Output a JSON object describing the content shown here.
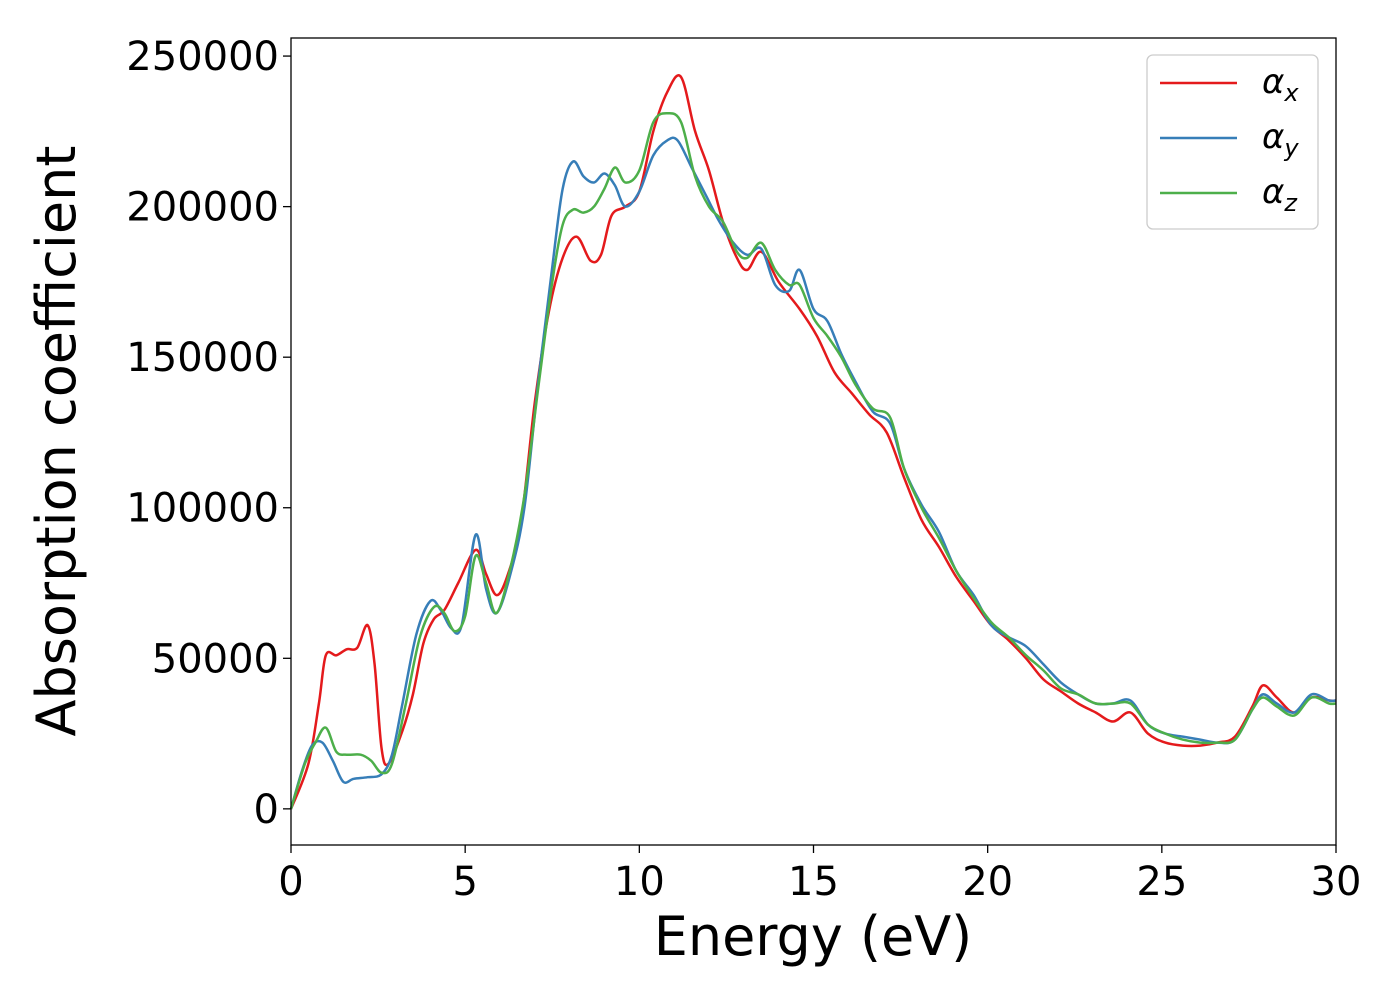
{
  "chart_data": {
    "type": "line",
    "xlabel": "Energy (eV)",
    "ylabel": "Absorption coefficient",
    "xlim": [
      0,
      30
    ],
    "ylim": [
      -12000,
      256000
    ],
    "xticks": [
      0,
      5,
      10,
      15,
      20,
      25,
      30
    ],
    "yticks": [
      0,
      50000,
      100000,
      150000,
      200000,
      250000
    ],
    "grid": false,
    "legend_position": "top-right",
    "series": [
      {
        "name": "α",
        "subscript": "x",
        "color": "#e41a1c",
        "points": [
          [
            0,
            0
          ],
          [
            0.5,
            15000
          ],
          [
            0.8,
            35000
          ],
          [
            1.0,
            51000
          ],
          [
            1.3,
            51000
          ],
          [
            1.6,
            53000
          ],
          [
            1.9,
            53500
          ],
          [
            2.2,
            61000
          ],
          [
            2.4,
            48000
          ],
          [
            2.6,
            20000
          ],
          [
            2.8,
            15000
          ],
          [
            3.2,
            26000
          ],
          [
            3.5,
            38000
          ],
          [
            3.8,
            55000
          ],
          [
            4.1,
            63000
          ],
          [
            4.4,
            66000
          ],
          [
            4.8,
            75000
          ],
          [
            5.3,
            86000
          ],
          [
            5.6,
            78000
          ],
          [
            5.9,
            71000
          ],
          [
            6.2,
            77000
          ],
          [
            6.6,
            95000
          ],
          [
            7.0,
            135000
          ],
          [
            7.4,
            165000
          ],
          [
            7.8,
            183000
          ],
          [
            8.2,
            190000
          ],
          [
            8.6,
            182000
          ],
          [
            8.9,
            184000
          ],
          [
            9.2,
            197000
          ],
          [
            9.6,
            200000
          ],
          [
            10.0,
            205000
          ],
          [
            10.4,
            225000
          ],
          [
            10.8,
            238000
          ],
          [
            11.2,
            243000
          ],
          [
            11.6,
            225000
          ],
          [
            12.0,
            212000
          ],
          [
            12.4,
            195000
          ],
          [
            12.8,
            183000
          ],
          [
            13.1,
            179000
          ],
          [
            13.5,
            185000
          ],
          [
            14.0,
            175000
          ],
          [
            14.6,
            166000
          ],
          [
            15.1,
            157000
          ],
          [
            15.6,
            145000
          ],
          [
            16.1,
            138000
          ],
          [
            16.6,
            131000
          ],
          [
            17.1,
            125000
          ],
          [
            17.6,
            110000
          ],
          [
            18.1,
            96000
          ],
          [
            18.6,
            87000
          ],
          [
            19.1,
            77000
          ],
          [
            19.6,
            69000
          ],
          [
            20.1,
            61000
          ],
          [
            20.6,
            56000
          ],
          [
            21.1,
            50000
          ],
          [
            21.6,
            43000
          ],
          [
            22.1,
            39000
          ],
          [
            22.6,
            35000
          ],
          [
            23.1,
            32000
          ],
          [
            23.6,
            29000
          ],
          [
            24.1,
            32000
          ],
          [
            24.6,
            25000
          ],
          [
            25.1,
            22000
          ],
          [
            25.6,
            21000
          ],
          [
            26.1,
            21000
          ],
          [
            26.6,
            22000
          ],
          [
            27.1,
            24000
          ],
          [
            27.6,
            34000
          ],
          [
            27.9,
            41000
          ],
          [
            28.3,
            37000
          ],
          [
            28.8,
            32000
          ],
          [
            29.3,
            37000
          ],
          [
            29.8,
            36000
          ],
          [
            30.0,
            36000
          ]
        ]
      },
      {
        "name": "α",
        "subscript": "y",
        "color": "#377eb8",
        "points": [
          [
            0,
            0
          ],
          [
            0.3,
            12000
          ],
          [
            0.6,
            21000
          ],
          [
            0.9,
            22000
          ],
          [
            1.2,
            16000
          ],
          [
            1.5,
            9000
          ],
          [
            1.8,
            10000
          ],
          [
            2.2,
            10500
          ],
          [
            2.6,
            11500
          ],
          [
            2.9,
            18000
          ],
          [
            3.2,
            35000
          ],
          [
            3.6,
            58000
          ],
          [
            4.0,
            69000
          ],
          [
            4.3,
            66000
          ],
          [
            4.6,
            60000
          ],
          [
            4.9,
            61000
          ],
          [
            5.3,
            91000
          ],
          [
            5.6,
            73000
          ],
          [
            5.9,
            65000
          ],
          [
            6.3,
            78000
          ],
          [
            6.7,
            100000
          ],
          [
            7.1,
            142000
          ],
          [
            7.5,
            180000
          ],
          [
            7.8,
            206000
          ],
          [
            8.1,
            215000
          ],
          [
            8.4,
            210000
          ],
          [
            8.7,
            208000
          ],
          [
            9.0,
            211000
          ],
          [
            9.3,
            207000
          ],
          [
            9.6,
            200000
          ],
          [
            10.0,
            205000
          ],
          [
            10.4,
            217000
          ],
          [
            10.8,
            222000
          ],
          [
            11.1,
            222000
          ],
          [
            11.5,
            213000
          ],
          [
            11.9,
            204000
          ],
          [
            12.3,
            195000
          ],
          [
            12.7,
            188000
          ],
          [
            13.1,
            184000
          ],
          [
            13.5,
            186000
          ],
          [
            13.9,
            174000
          ],
          [
            14.3,
            172000
          ],
          [
            14.6,
            179000
          ],
          [
            15.0,
            166000
          ],
          [
            15.4,
            162000
          ],
          [
            15.8,
            151000
          ],
          [
            16.2,
            142000
          ],
          [
            16.7,
            132000
          ],
          [
            17.2,
            128000
          ],
          [
            17.6,
            113000
          ],
          [
            18.1,
            101000
          ],
          [
            18.6,
            92000
          ],
          [
            19.1,
            79000
          ],
          [
            19.6,
            71000
          ],
          [
            20.1,
            61000
          ],
          [
            20.6,
            57000
          ],
          [
            21.1,
            54000
          ],
          [
            21.6,
            48000
          ],
          [
            22.1,
            42000
          ],
          [
            22.6,
            38000
          ],
          [
            23.1,
            35000
          ],
          [
            23.6,
            35000
          ],
          [
            24.1,
            36000
          ],
          [
            24.6,
            28000
          ],
          [
            25.1,
            25000
          ],
          [
            25.6,
            24000
          ],
          [
            26.1,
            23000
          ],
          [
            26.6,
            22000
          ],
          [
            27.1,
            23000
          ],
          [
            27.6,
            33000
          ],
          [
            27.9,
            38000
          ],
          [
            28.3,
            35000
          ],
          [
            28.8,
            32000
          ],
          [
            29.3,
            38000
          ],
          [
            29.8,
            36000
          ],
          [
            30.0,
            36000
          ]
        ]
      },
      {
        "name": "α",
        "subscript": "z",
        "color": "#4daf4a",
        "points": [
          [
            0,
            0
          ],
          [
            0.4,
            15000
          ],
          [
            0.7,
            22000
          ],
          [
            1.0,
            27000
          ],
          [
            1.3,
            19000
          ],
          [
            1.6,
            18000
          ],
          [
            2.0,
            18000
          ],
          [
            2.3,
            16000
          ],
          [
            2.6,
            12000
          ],
          [
            2.9,
            15000
          ],
          [
            3.3,
            35000
          ],
          [
            3.7,
            57000
          ],
          [
            4.1,
            67000
          ],
          [
            4.4,
            65000
          ],
          [
            4.7,
            59000
          ],
          [
            5.0,
            64000
          ],
          [
            5.3,
            84000
          ],
          [
            5.6,
            75000
          ],
          [
            5.9,
            65000
          ],
          [
            6.3,
            80000
          ],
          [
            6.7,
            104000
          ],
          [
            7.1,
            140000
          ],
          [
            7.5,
            175000
          ],
          [
            7.8,
            194000
          ],
          [
            8.1,
            199000
          ],
          [
            8.4,
            198000
          ],
          [
            8.7,
            200000
          ],
          [
            9.0,
            206000
          ],
          [
            9.3,
            213000
          ],
          [
            9.6,
            208000
          ],
          [
            10.0,
            212000
          ],
          [
            10.4,
            228000
          ],
          [
            10.8,
            231000
          ],
          [
            11.2,
            228000
          ],
          [
            11.6,
            210000
          ],
          [
            12.0,
            200000
          ],
          [
            12.4,
            195000
          ],
          [
            12.8,
            185000
          ],
          [
            13.1,
            183000
          ],
          [
            13.5,
            188000
          ],
          [
            13.9,
            179000
          ],
          [
            14.3,
            174000
          ],
          [
            14.6,
            174000
          ],
          [
            15.0,
            163000
          ],
          [
            15.4,
            157000
          ],
          [
            15.8,
            150000
          ],
          [
            16.2,
            141000
          ],
          [
            16.7,
            133000
          ],
          [
            17.2,
            130000
          ],
          [
            17.6,
            113000
          ],
          [
            18.1,
            100000
          ],
          [
            18.6,
            90000
          ],
          [
            19.1,
            79000
          ],
          [
            19.6,
            70000
          ],
          [
            20.1,
            62000
          ],
          [
            20.6,
            57000
          ],
          [
            21.1,
            51000
          ],
          [
            21.6,
            46000
          ],
          [
            22.1,
            40000
          ],
          [
            22.6,
            38000
          ],
          [
            23.1,
            35000
          ],
          [
            23.6,
            35000
          ],
          [
            24.1,
            35000
          ],
          [
            24.6,
            28000
          ],
          [
            25.1,
            25000
          ],
          [
            25.6,
            23000
          ],
          [
            26.1,
            22000
          ],
          [
            26.6,
            22000
          ],
          [
            27.1,
            23000
          ],
          [
            27.6,
            33000
          ],
          [
            27.9,
            37000
          ],
          [
            28.3,
            34000
          ],
          [
            28.8,
            31000
          ],
          [
            29.3,
            37000
          ],
          [
            29.8,
            35000
          ],
          [
            30.0,
            35000
          ]
        ]
      }
    ]
  }
}
